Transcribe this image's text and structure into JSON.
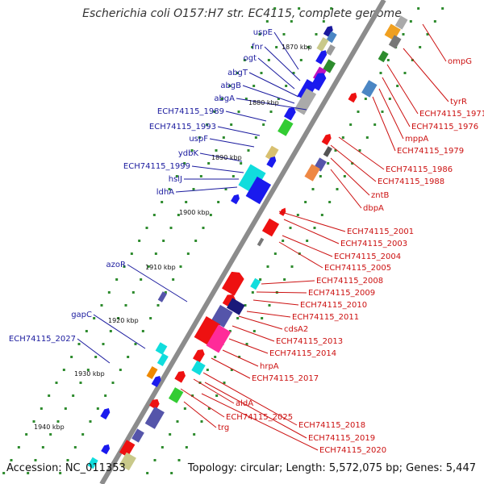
{
  "title": "Escherichia coli O157:H7 str. EC4115, complete genome",
  "footer": {
    "accession": "Accession: NC_011353",
    "topology": "Topology: circular; Length: 5,572,075 bp; Genes: 5,447"
  },
  "colors": {
    "left_label": "#1a1a9e",
    "right_label": "#cc1111",
    "backbone": "#8c8c8c",
    "tick_dot": "#2e8b2e"
  },
  "scale_labels": [
    "1870 kbp",
    "1880 kbp",
    "1890 kbp",
    "1900 kbp",
    "1910 kbp",
    "1920 kbp",
    "1930 kbp",
    "1940 kbp"
  ],
  "genes_left": [
    "uspE",
    "fnr",
    "ogt",
    "abgT",
    "abgB",
    "abgA",
    "ECH74115_1989",
    "ECH74115_1993",
    "uspF",
    "ydbK",
    "ECH74115_1999",
    "hslJ",
    "ldhA",
    "azoR",
    "gapC",
    "ECH74115_2027"
  ],
  "genes_right": [
    "ompG",
    "tyrR",
    "ECH74115_1971",
    "ECH74115_1976",
    "mppA",
    "ECH74115_1979",
    "ECH74115_1986",
    "ECH74115_1988",
    "zntB",
    "dbpA",
    "ECH74115_2001",
    "ECH74115_2003",
    "ECH74115_2004",
    "ECH74115_2005",
    "ECH74115_2008",
    "ECH74115_2009",
    "ECH74115_2010",
    "ECH74115_2011",
    "cdsA2",
    "ECH74115_2013",
    "ECH74115_2014",
    "hrpA",
    "ECH74115_2017",
    "aldA",
    "ECH74115_2025",
    "trg",
    "ECH74115_2018",
    "ECH74115_2019",
    "ECH74115_2020"
  ]
}
